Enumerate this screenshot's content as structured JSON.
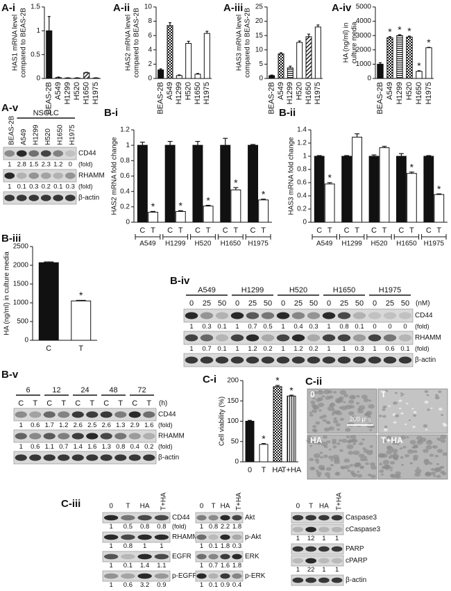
{
  "chart_data": [
    {
      "type": "bar",
      "label": "A-i",
      "ylabel": [
        "HAS1 mRNA level",
        "compared to BEAS-2B"
      ],
      "categories": [
        "BEAS-2B",
        "A549",
        "H1299",
        "H520",
        "H1650",
        "H1975"
      ],
      "values": [
        1.0,
        0.02,
        0.01,
        0.01,
        0.12,
        0.01
      ],
      "errors": [
        0.3,
        0.01,
        0.005,
        0.005,
        0.01,
        0.005
      ],
      "patterns": [
        "solid",
        "checker",
        "hlines",
        "open",
        "diag",
        "open"
      ],
      "ylim": [
        0,
        1.5
      ],
      "yticks": [
        0,
        0.5,
        1,
        1.5
      ]
    },
    {
      "type": "bar",
      "label": "A-ii",
      "ylabel": [
        "HAS2 mRNA level",
        "compared to BEAS-2B"
      ],
      "categories": [
        "BEAS-2B",
        "A549",
        "H1299",
        "H520",
        "H1650",
        "H1975"
      ],
      "values": [
        1.2,
        7.4,
        0.4,
        4.9,
        0.6,
        6.3
      ],
      "errors": [
        0.15,
        0.4,
        0.1,
        0.3,
        0.1,
        0.3
      ],
      "patterns": [
        "solid",
        "checker",
        "open",
        "open",
        "open",
        "open"
      ],
      "ylim": [
        0,
        10
      ],
      "yticks": [
        0,
        2,
        4,
        6,
        8,
        10
      ]
    },
    {
      "type": "bar",
      "label": "A-iii",
      "ylabel": [
        "HAS3 mRNA level",
        "compared to BEAS-2B"
      ],
      "categories": [
        "BEAS-2B",
        "A549",
        "H1299",
        "H520",
        "H1650",
        "H1975"
      ],
      "values": [
        1.0,
        8.6,
        3.7,
        12.6,
        14.6,
        18.0
      ],
      "errors": [
        0.2,
        0.4,
        0.6,
        0.5,
        0.9,
        0.7
      ],
      "patterns": [
        "solid",
        "checker",
        "hlines",
        "open",
        "diag",
        "open"
      ],
      "ylim": [
        0,
        25
      ],
      "yticks": [
        0,
        5,
        10,
        15,
        20,
        25
      ]
    },
    {
      "type": "bar",
      "label": "A-iv",
      "ylabel": [
        "HA (ng/ml) in",
        "culture media"
      ],
      "categories": [
        "BEAS-2B",
        "A549",
        "H1299",
        "H520",
        "H1650",
        "H1975"
      ],
      "values": [
        1000,
        2850,
        3000,
        2900,
        500,
        2150
      ],
      "errors": [
        100,
        80,
        60,
        60,
        40,
        30
      ],
      "significance": [
        null,
        "*",
        "*",
        "*",
        "*",
        "*"
      ],
      "patterns": [
        "solid",
        "checker",
        "hlines",
        "checker",
        "open",
        "open"
      ],
      "ylim": [
        0,
        5000
      ],
      "yticks": [
        0,
        1000,
        2000,
        3000,
        4000,
        5000
      ]
    },
    {
      "type": "bar",
      "label": "B-i",
      "ylabel": [
        "HAS2 mRNA fold change"
      ],
      "categories": [
        "C",
        "T",
        "C",
        "T",
        "C",
        "T",
        "C",
        "T",
        "C",
        "T"
      ],
      "groups": [
        "A549",
        "H1299",
        "H520",
        "H1650",
        "H1975"
      ],
      "values": [
        1,
        0.13,
        1,
        0.14,
        1,
        0.21,
        1,
        0.42,
        1,
        0.29
      ],
      "errors": [
        0.04,
        0.01,
        0.05,
        0.01,
        0.05,
        0.01,
        0.09,
        0.03,
        0.01,
        0.01
      ],
      "significance": [
        null,
        "*",
        null,
        "*",
        null,
        "*",
        null,
        "*",
        null,
        "*"
      ],
      "patterns": [
        "solid",
        "open",
        "solid",
        "open",
        "solid",
        "open",
        "solid",
        "open",
        "solid",
        "open"
      ],
      "ylim": [
        0,
        1.2
      ],
      "yticks": [
        0,
        0.2,
        0.4,
        0.6,
        0.8,
        1,
        1.2
      ]
    },
    {
      "type": "bar",
      "label": "B-ii",
      "ylabel": [
        "HAS3 mRNA fold change"
      ],
      "categories": [
        "C",
        "T",
        "C",
        "T",
        "C",
        "T",
        "C",
        "T",
        "C",
        "T"
      ],
      "groups": [
        "A549",
        "H1299",
        "H520",
        "H1650",
        "H1975"
      ],
      "values": [
        1,
        0.58,
        1,
        1.29,
        1,
        1.13,
        1,
        0.74,
        1,
        0.42
      ],
      "errors": [
        0.01,
        0.02,
        0.01,
        0.05,
        0.02,
        0.02,
        0.04,
        0.02,
        0.01,
        0.01
      ],
      "significance": [
        null,
        "*",
        null,
        null,
        null,
        null,
        null,
        "*",
        null,
        "*"
      ],
      "patterns": [
        "solid",
        "open",
        "solid",
        "open",
        "solid",
        "open",
        "solid",
        "open",
        "solid",
        "open"
      ],
      "ylim": [
        0,
        1.4
      ],
      "yticks": [
        0,
        0.2,
        0.4,
        0.6,
        0.8,
        1,
        1.2,
        1.4
      ]
    },
    {
      "type": "bar",
      "label": "B-iii",
      "ylabel": [
        "HA (ng/ml) in culture media"
      ],
      "categories": [
        "C",
        "T"
      ],
      "values": [
        2070,
        1050
      ],
      "errors": [
        20,
        15
      ],
      "significance": [
        null,
        "*"
      ],
      "patterns": [
        "solid",
        "open"
      ],
      "ylim": [
        0,
        2500
      ],
      "yticks": [
        0,
        500,
        1000,
        1500,
        2000,
        2500
      ]
    },
    {
      "type": "bar",
      "label": "C-i",
      "ylabel": [
        "Cell viability (%)"
      ],
      "categories": [
        "0",
        "T",
        "HA",
        "T+HA"
      ],
      "values": [
        100,
        43,
        185,
        162
      ],
      "errors": [
        2,
        2,
        3,
        2
      ],
      "significance": [
        null,
        "*",
        "*",
        "*"
      ],
      "patterns": [
        "solid",
        "open",
        "checker",
        "vlines"
      ],
      "ylim": [
        0,
        200
      ],
      "yticks": [
        0,
        50,
        100,
        150,
        200
      ]
    }
  ],
  "blots": [
    {
      "label": "A-v",
      "group": "NSCLC",
      "lanes": [
        "BEAS-2B",
        "A549",
        "H1299",
        "H520",
        "H1650",
        "H1975"
      ],
      "rows": [
        {
          "name": "CD44",
          "fold": [
            1,
            2.8,
            1.5,
            2.3,
            1.2,
            0
          ],
          "fold_note": "(fold)"
        },
        {
          "name": "RHAMM",
          "fold": [
            1,
            0.1,
            0.3,
            0.2,
            0.1,
            0.3
          ],
          "fold_note": "(fold)"
        },
        {
          "name": "β-actin"
        }
      ]
    },
    {
      "label": "B-iv",
      "groups": [
        "A549",
        "H1299",
        "H520",
        "H1650",
        "H1975"
      ],
      "sublanes": [
        0,
        25,
        50
      ],
      "unit": "(nM)",
      "rows": [
        {
          "name": "CD44",
          "fold": [
            1,
            0.3,
            0.1,
            1,
            0.7,
            0.5,
            1,
            0.4,
            0.3,
            1,
            0.8,
            0.1,
            0,
            0,
            0
          ],
          "fold_note": "(fold)"
        },
        {
          "name": "RHAMM",
          "fold": [
            1,
            0.7,
            0.1,
            1,
            1.2,
            0.2,
            1,
            1.2,
            0.2,
            1,
            1,
            0.3,
            1,
            0.6,
            0.1
          ],
          "fold_note": "(fold)"
        },
        {
          "name": "β-actin"
        }
      ]
    },
    {
      "label": "B-v",
      "groups": [
        6,
        12,
        24,
        48,
        72
      ],
      "sublanes": [
        "C",
        "T"
      ],
      "unit": "(h)",
      "rows": [
        {
          "name": "CD44",
          "fold": [
            1,
            0.6,
            1.7,
            1.2,
            2.6,
            2.5,
            2.6,
            1.3,
            2.9,
            1.6
          ],
          "fold_note": "(fold)"
        },
        {
          "name": "RHAMM",
          "fold": [
            1,
            0.6,
            1.1,
            0.7,
            1.4,
            1.6,
            1.3,
            0.8,
            0.4,
            0.2
          ],
          "fold_note": "(fold)"
        },
        {
          "name": "β-actin"
        }
      ]
    },
    {
      "label": "C-iii",
      "lanes": [
        "0",
        "T",
        "HA",
        "T+HA"
      ],
      "rows": [
        {
          "name": "CD44",
          "fold": [
            1,
            0.5,
            0.8,
            0.8
          ],
          "fold_note": "(fold)"
        },
        {
          "name": "RHAMM",
          "fold": [
            1,
            0.8,
            1,
            1
          ]
        },
        {
          "name": "EGFR",
          "fold": [
            1,
            0.1,
            1.4,
            1.1
          ]
        },
        {
          "name": "p-EGFR",
          "fold": [
            1,
            0.6,
            3.2,
            0.9
          ]
        }
      ]
    },
    {
      "lanes": [
        "0",
        "T",
        "HA",
        "T+HA"
      ],
      "rows": [
        {
          "name": "Akt",
          "fold": [
            1,
            0.8,
            2.2,
            1.8
          ]
        },
        {
          "name": "p-Akt",
          "fold": [
            1,
            0.1,
            1.8,
            0.3
          ]
        },
        {
          "name": "ERK",
          "fold": [
            1,
            0.7,
            1.6,
            1.8
          ]
        },
        {
          "name": "p-ERK",
          "fold": [
            1,
            0.1,
            0.9,
            0.4
          ]
        }
      ]
    },
    {
      "lanes": [
        "0",
        "T",
        "HA",
        "T+HA"
      ],
      "rows": [
        {
          "name": "Caspase3"
        },
        {
          "name": "cCaspase3",
          "fold": [
            1,
            12,
            1,
            1
          ]
        },
        {
          "name": "PARP"
        },
        {
          "name": "cPARP",
          "fold": [
            1,
            22,
            1,
            1
          ]
        },
        {
          "name": "β-actin"
        }
      ]
    }
  ],
  "images": {
    "label": "C-ii",
    "panels": [
      "0",
      "T",
      "HA",
      "T+HA"
    ],
    "scale_bar": "200 μm"
  }
}
